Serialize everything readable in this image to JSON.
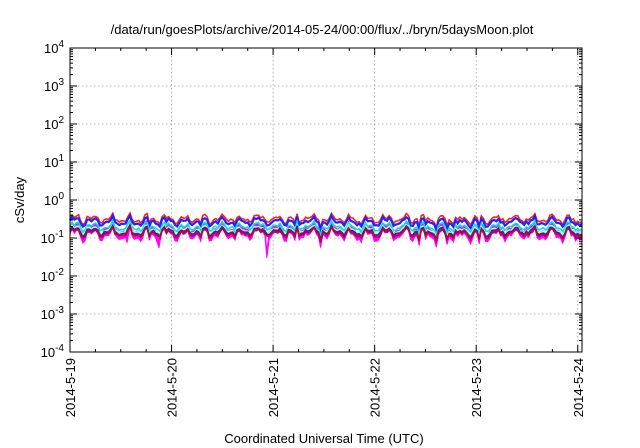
{
  "chart_data": {
    "type": "line",
    "title": "/data/run/goesPlots/archive/2014-05-24/00:00/flux/../bryn/5daysMoon.plot",
    "xlabel": "Coordinated Universal Time (UTC)",
    "ylabel": "cSv/day",
    "y_scale": "log",
    "ylim": [
      0.0001,
      10000
    ],
    "y_ticks": [
      {
        "value": 0.0001,
        "base": "10",
        "exp": "-4"
      },
      {
        "value": 0.001,
        "base": "10",
        "exp": "-3"
      },
      {
        "value": 0.01,
        "base": "10",
        "exp": "-2"
      },
      {
        "value": 0.1,
        "base": "10",
        "exp": "-1"
      },
      {
        "value": 1,
        "base": "10",
        "exp": "0"
      },
      {
        "value": 10,
        "base": "10",
        "exp": "1"
      },
      {
        "value": 100,
        "base": "10",
        "exp": "2"
      },
      {
        "value": 1000,
        "base": "10",
        "exp": "3"
      },
      {
        "value": 10000,
        "base": "10",
        "exp": "4"
      }
    ],
    "x_ticks": [
      "2014-5-19",
      "2014-5-20",
      "2014-5-21",
      "2014-5-22",
      "2014-5-23",
      "2014-5-24"
    ],
    "xlim": [
      "2014-05-19",
      "2014-05-24 01:00"
    ],
    "grid": true,
    "legend": "none",
    "series": [
      {
        "color": "#ff00ff",
        "fill": true,
        "base": 0.12,
        "dips": [
          {
            "x": "2014-05-19 13:30",
            "y": 0.075
          },
          {
            "x": "2014-05-19 21:00",
            "y": 0.055
          },
          {
            "x": "2014-05-20 22:30",
            "y": 0.03
          }
        ]
      },
      {
        "color": "#ff2020",
        "base": 0.32
      },
      {
        "color": "#2222ff",
        "base": 0.27
      },
      {
        "color": "#00e0e0",
        "base": 0.2
      },
      {
        "color": "#b0ffb0",
        "base": 0.165
      },
      {
        "color": "#2a2aa0",
        "base": 0.15
      },
      {
        "color": "#c00040",
        "base": 0.135
      }
    ]
  }
}
